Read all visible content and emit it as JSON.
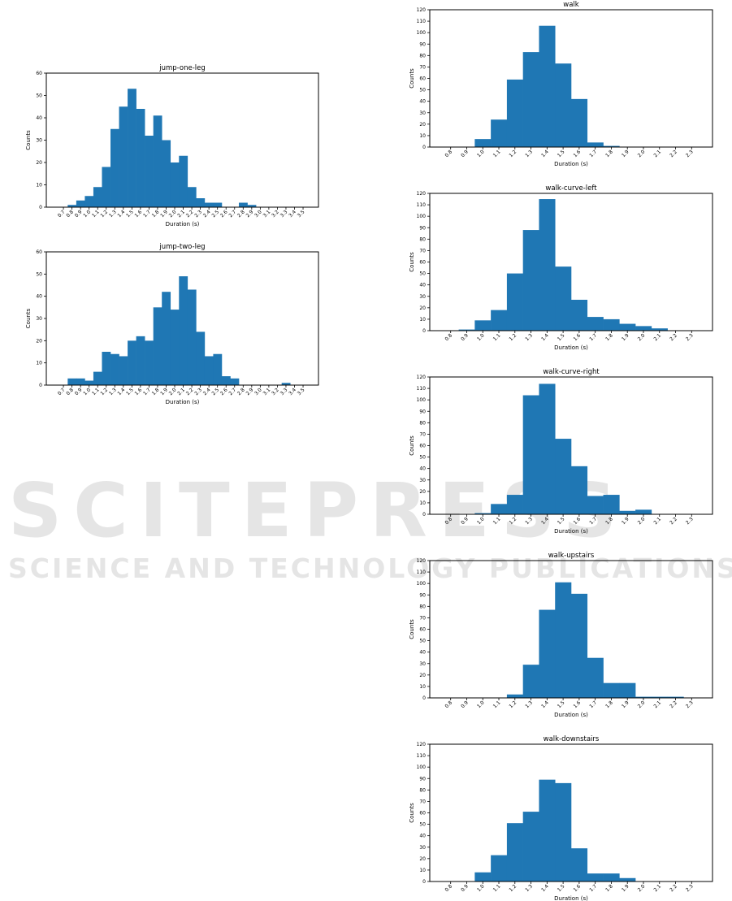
{
  "watermark": {
    "line1": "SCITEPRESS",
    "line2": "SCIENCE AND TECHNOLOGY PUBLICATIONS"
  },
  "colors": {
    "bar": "#1f77b4",
    "axis": "#000000"
  },
  "chart_data": [
    {
      "type": "bar",
      "title": "jump-one-leg",
      "xlabel": "Duration (s)",
      "ylabel": "Counts",
      "categories": [
        "0.7",
        "0.8",
        "0.9",
        "1.0",
        "1.1",
        "1.2",
        "1.3",
        "1.4",
        "1.5",
        "1.6",
        "1.7",
        "1.8",
        "1.9",
        "2.0",
        "2.1",
        "2.2",
        "2.3",
        "2.4",
        "2.5",
        "2.6",
        "2.7",
        "2.8",
        "2.9",
        "3.0",
        "3.1",
        "3.2",
        "3.3",
        "3.4",
        "3.5"
      ],
      "values": [
        0,
        1,
        3,
        5,
        9,
        18,
        35,
        45,
        53,
        44,
        32,
        41,
        30,
        20,
        23,
        9,
        4,
        2,
        2,
        0,
        0,
        2,
        1,
        0,
        0,
        0,
        0,
        0,
        0
      ],
      "bin_width": 0.1,
      "xlim": [
        0.5,
        3.68
      ],
      "ylim": [
        0,
        60
      ],
      "yticks": [
        0,
        10,
        20,
        30,
        40,
        50,
        60
      ],
      "grid": false
    },
    {
      "type": "bar",
      "title": "jump-two-leg",
      "xlabel": "Duration (s)",
      "ylabel": "Counts",
      "categories": [
        "0.7",
        "0.8",
        "0.9",
        "1.0",
        "1.1",
        "1.2",
        "1.3",
        "1.4",
        "1.5",
        "1.6",
        "1.7",
        "1.8",
        "1.9",
        "2.0",
        "2.1",
        "2.2",
        "2.3",
        "2.4",
        "2.5",
        "2.6",
        "2.7",
        "2.8",
        "2.9",
        "3.0",
        "3.1",
        "3.2",
        "3.3",
        "3.4",
        "3.5"
      ],
      "values": [
        0,
        3,
        3,
        2,
        6,
        15,
        14,
        13,
        20,
        22,
        20,
        35,
        42,
        34,
        49,
        43,
        24,
        13,
        14,
        4,
        3,
        0,
        0,
        0,
        0,
        0,
        1,
        0,
        0
      ],
      "bin_width": 0.1,
      "xlim": [
        0.5,
        3.68
      ],
      "ylim": [
        0,
        60
      ],
      "yticks": [
        0,
        10,
        20,
        30,
        40,
        50,
        60
      ],
      "grid": false
    },
    {
      "type": "bar",
      "title": "walk",
      "xlabel": "Duration (s)",
      "ylabel": "Counts",
      "categories": [
        "0.8",
        "0.9",
        "1.0",
        "1.1",
        "1.2",
        "1.3",
        "1.4",
        "1.5",
        "1.6",
        "1.7",
        "1.8",
        "1.9",
        "2.0",
        "2.1",
        "2.2",
        "2.3"
      ],
      "values": [
        0,
        0,
        7,
        24,
        59,
        83,
        106,
        73,
        42,
        4,
        1,
        0,
        0,
        0,
        0,
        0
      ],
      "bin_width": 0.1,
      "xlim": [
        0.67,
        2.43
      ],
      "ylim": [
        0,
        120
      ],
      "yticks": [
        0,
        10,
        20,
        30,
        40,
        50,
        60,
        70,
        80,
        90,
        100,
        110,
        120
      ],
      "grid": false
    },
    {
      "type": "bar",
      "title": "walk-curve-left",
      "xlabel": "Duration (s)",
      "ylabel": "Counts",
      "categories": [
        "0.8",
        "0.9",
        "1.0",
        "1.1",
        "1.2",
        "1.3",
        "1.4",
        "1.5",
        "1.6",
        "1.7",
        "1.8",
        "1.9",
        "2.0",
        "2.1",
        "2.2",
        "2.3"
      ],
      "values": [
        0,
        1,
        9,
        18,
        50,
        88,
        115,
        56,
        27,
        12,
        10,
        6,
        4,
        2,
        0,
        0
      ],
      "bin_width": 0.1,
      "xlim": [
        0.67,
        2.43
      ],
      "ylim": [
        0,
        120
      ],
      "yticks": [
        0,
        10,
        20,
        30,
        40,
        50,
        60,
        70,
        80,
        90,
        100,
        110,
        120
      ],
      "grid": false
    },
    {
      "type": "bar",
      "title": "walk-curve-right",
      "xlabel": "Duration (s)",
      "ylabel": "Counts",
      "categories": [
        "0.8",
        "0.9",
        "1.0",
        "1.1",
        "1.2",
        "1.3",
        "1.4",
        "1.5",
        "1.6",
        "1.7",
        "1.8",
        "1.9",
        "2.0",
        "2.1",
        "2.2",
        "2.3"
      ],
      "values": [
        0,
        0,
        1,
        9,
        17,
        104,
        114,
        66,
        42,
        16,
        17,
        3,
        4,
        0,
        0,
        0
      ],
      "bin_width": 0.1,
      "xlim": [
        0.67,
        2.43
      ],
      "ylim": [
        0,
        120
      ],
      "yticks": [
        0,
        10,
        20,
        30,
        40,
        50,
        60,
        70,
        80,
        90,
        100,
        110,
        120
      ],
      "grid": false
    },
    {
      "type": "bar",
      "title": "walk-upstairs",
      "xlabel": "Duration (s)",
      "ylabel": "Counts",
      "categories": [
        "0.8",
        "0.9",
        "1.0",
        "1.1",
        "1.2",
        "1.3",
        "1.4",
        "1.5",
        "1.6",
        "1.7",
        "1.8",
        "1.9",
        "2.0",
        "2.1",
        "2.2",
        "2.3"
      ],
      "values": [
        0,
        0,
        0,
        0,
        3,
        29,
        77,
        101,
        91,
        35,
        13,
        13,
        1,
        1,
        1,
        0
      ],
      "bin_width": 0.1,
      "xlim": [
        0.67,
        2.43
      ],
      "ylim": [
        0,
        120
      ],
      "yticks": [
        0,
        10,
        20,
        30,
        40,
        50,
        60,
        70,
        80,
        90,
        100,
        110,
        120
      ],
      "grid": false
    },
    {
      "type": "bar",
      "title": "walk-downstairs",
      "xlabel": "Duration (s)",
      "ylabel": "Counts",
      "categories": [
        "0.8",
        "0.9",
        "1.0",
        "1.1",
        "1.2",
        "1.3",
        "1.4",
        "1.5",
        "1.6",
        "1.7",
        "1.8",
        "1.9",
        "2.0",
        "2.1",
        "2.2",
        "2.3"
      ],
      "values": [
        0,
        0,
        8,
        23,
        51,
        61,
        89,
        86,
        29,
        7,
        7,
        3,
        0,
        0,
        0,
        0
      ],
      "bin_width": 0.1,
      "xlim": [
        0.67,
        2.43
      ],
      "ylim": [
        0,
        120
      ],
      "yticks": [
        0,
        10,
        20,
        30,
        40,
        50,
        60,
        70,
        80,
        90,
        100,
        110,
        120
      ],
      "grid": false
    }
  ]
}
